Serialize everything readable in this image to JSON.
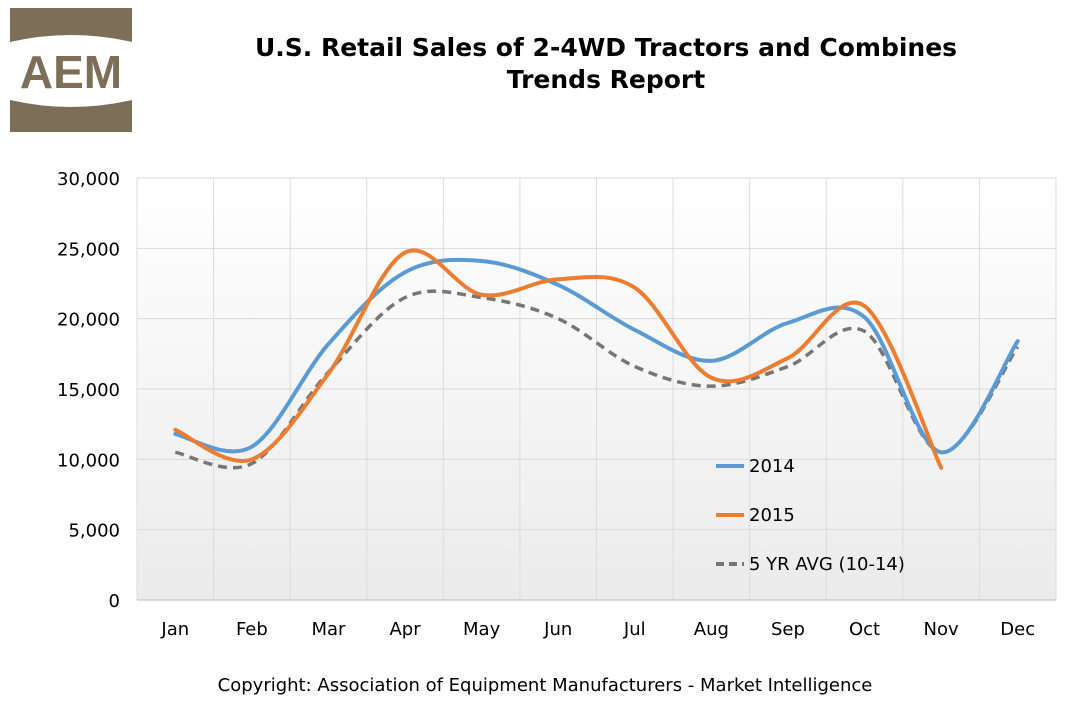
{
  "logo": {
    "text": "AEM"
  },
  "header": {
    "title_line1": "U.S. Retail Sales of 2-4WD Tractors and Combines",
    "title_line2": "Trends Report"
  },
  "footer": {
    "copyright": "Copyright: Association of Equipment Manufacturers - Market Intelligence"
  },
  "chart_data": {
    "type": "line",
    "title": "U.S. Retail Sales of 2-4WD Tractors and Combines Trends Report",
    "xlabel": "",
    "ylabel": "",
    "categories": [
      "Jan",
      "Feb",
      "Mar",
      "Apr",
      "May",
      "Jun",
      "Jul",
      "Aug",
      "Sep",
      "Oct",
      "Nov",
      "Dec"
    ],
    "ylim": [
      0,
      30000
    ],
    "yticks": [
      0,
      5000,
      10000,
      15000,
      20000,
      25000,
      30000
    ],
    "ytick_labels": [
      "0",
      "5,000",
      "10,000",
      "15,000",
      "20,000",
      "25,000",
      "30,000"
    ],
    "grid": true,
    "legend_position": "lower-right",
    "series": [
      {
        "name": "2014",
        "color": "#5b9bd5",
        "dashed": false,
        "values": [
          11800,
          10900,
          18200,
          23300,
          24100,
          22400,
          19200,
          17000,
          19700,
          20100,
          10500,
          18400
        ]
      },
      {
        "name": "2015",
        "color": "#ed7d31",
        "dashed": false,
        "values": [
          12100,
          10000,
          16100,
          24700,
          21700,
          22800,
          22200,
          15800,
          17200,
          20900,
          9400,
          null
        ]
      },
      {
        "name": "5 YR AVG (10-14)",
        "color": "#767676",
        "dashed": true,
        "values": [
          10500,
          9700,
          16200,
          21500,
          21500,
          20000,
          16600,
          15200,
          16600,
          19100,
          10500,
          18000
        ]
      }
    ]
  }
}
